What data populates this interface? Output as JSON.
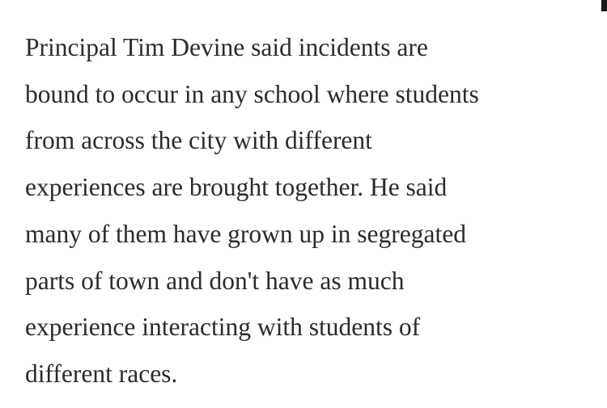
{
  "article": {
    "lines": [
      "Principal Tim Devine said incidents are",
      "bound to occur in any school where students",
      "from across the city with different",
      "experiences are brought together. He said",
      "many of them have grown up in segregated",
      "parts of town and don't have as much",
      "experience interacting with students of",
      "different races."
    ]
  }
}
